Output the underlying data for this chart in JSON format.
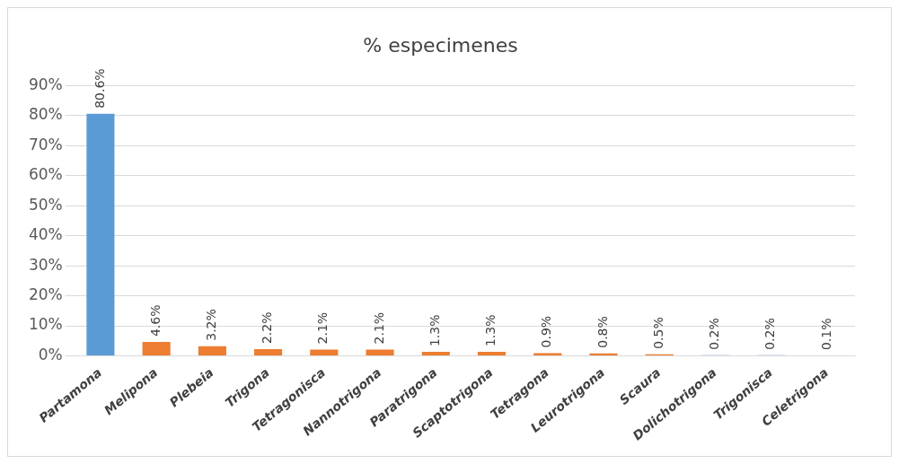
{
  "chart_data": {
    "type": "bar",
    "title": "% especimenes",
    "categories": [
      "Partamona",
      "Melipona",
      "Plebeia",
      "Trigona",
      "Tetragonisca",
      "Nannotrigona",
      "Paratrigona",
      "Scaptotrigona",
      "Tetragona",
      "Leurotrigona",
      "Scaura",
      "Dolichotrigona",
      "Trigonisca",
      "Celetrigona"
    ],
    "values": [
      80.6,
      4.6,
      3.2,
      2.2,
      2.1,
      2.1,
      1.3,
      1.3,
      0.9,
      0.8,
      0.5,
      0.2,
      0.2,
      0.1
    ],
    "colors": [
      "#5b9bd5",
      "#ed7d31",
      "#ed7d31",
      "#ed7d31",
      "#ed7d31",
      "#ed7d31",
      "#ed7d31",
      "#ed7d31",
      "#ed7d31",
      "#ed7d31",
      "#ed7d31",
      "#5b9bd5",
      "#5b9bd5",
      "#5b9bd5"
    ],
    "value_labels": [
      "80.6%",
      "4.6%",
      "3.2%",
      "2.2%",
      "2.1%",
      "2.1%",
      "1.3%",
      "1.3%",
      "0.9%",
      "0.8%",
      "0.5%",
      "0.2%",
      "0.2%",
      "0.1%"
    ],
    "ylim": [
      0,
      90
    ],
    "yticks": [
      {
        "value": 0,
        "label": "0%"
      },
      {
        "value": 10,
        "label": "10%"
      },
      {
        "value": 20,
        "label": "20%"
      },
      {
        "value": 30,
        "label": "30%"
      },
      {
        "value": 40,
        "label": "40%"
      },
      {
        "value": 50,
        "label": "50%"
      },
      {
        "value": 60,
        "label": "60%"
      },
      {
        "value": 70,
        "label": "70%"
      },
      {
        "value": 80,
        "label": "80%"
      },
      {
        "value": 90,
        "label": "90%"
      }
    ],
    "grid": "y",
    "legend": false
  }
}
